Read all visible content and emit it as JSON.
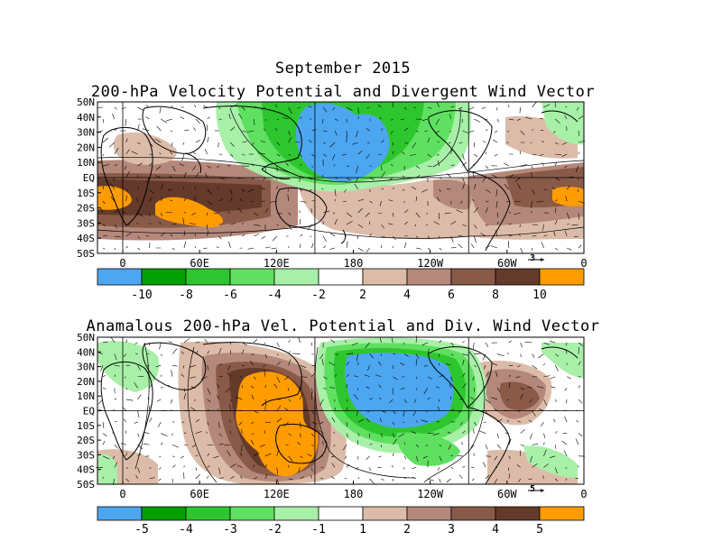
{
  "header": {
    "title": "September 2015",
    "panel1_title": "200-hPa Velocity Potential and Divergent Wind Vector",
    "panel2_title": "Anamalous 200-hPa Vel. Potential and Div. Wind Vector"
  },
  "chart_data": [
    {
      "type": "heatmap",
      "title": "200-hPa Velocity Potential and Divergent Wind Vector",
      "x_tick_labels": [
        "0",
        "60E",
        "120E",
        "180",
        "120W",
        "60W",
        "0"
      ],
      "y_tick_labels": [
        "50N",
        "40N",
        "30N",
        "20N",
        "10N",
        "EQ",
        "10S",
        "20S",
        "30S",
        "40S",
        "50S"
      ],
      "xlim": [
        0,
        360
      ],
      "ylim": [
        -50,
        50
      ],
      "vector_reference": "3",
      "colorbar": {
        "boundaries": [
          "-10",
          "-8",
          "-6",
          "-4",
          "-2",
          "2",
          "4",
          "6",
          "8",
          "10"
        ],
        "colors": [
          "#4da6f0",
          "#00a000",
          "#2ec62e",
          "#60e060",
          "#a8f0a8",
          "#ffffff",
          "#dcbca8",
          "#b4887a",
          "#8a5a48",
          "#643a2a",
          "#ff9c00"
        ]
      },
      "features": [
        {
          "name": "negative center (convergence aloft minimum)",
          "lon": 195,
          "lat": 22,
          "level": "< -10"
        },
        {
          "name": "positive maxima",
          "lon": 10,
          "lat": -18,
          "level": "> 10"
        },
        {
          "name": "positive maxima",
          "lon": 70,
          "lat": -25,
          "level": "> 10"
        },
        {
          "name": "positive maxima",
          "lon": 350,
          "lat": -18,
          "level": "> 10"
        }
      ]
    },
    {
      "type": "heatmap",
      "title": "Anamalous 200-hPa Vel. Potential and Div. Wind Vector",
      "x_tick_labels": [
        "0",
        "60E",
        "120E",
        "180",
        "120W",
        "60W",
        "0"
      ],
      "y_tick_labels": [
        "50N",
        "40N",
        "30N",
        "20N",
        "10N",
        "EQ",
        "10S",
        "20S",
        "30S",
        "40S",
        "50S"
      ],
      "xlim": [
        0,
        360
      ],
      "ylim": [
        -50,
        50
      ],
      "vector_reference": "5",
      "colorbar": {
        "boundaries": [
          "-5",
          "-4",
          "-3",
          "-2",
          "-1",
          "1",
          "2",
          "3",
          "4",
          "5"
        ],
        "colors": [
          "#4da6f0",
          "#00a000",
          "#2ec62e",
          "#60e060",
          "#a8f0a8",
          "#ffffff",
          "#dcbca8",
          "#b4887a",
          "#8a5a48",
          "#643a2a",
          "#ff9c00"
        ]
      },
      "features": [
        {
          "name": "negative anomaly center",
          "lon": 205,
          "lat": 15,
          "level": "< -5"
        },
        {
          "name": "positive anomaly center",
          "lon": 115,
          "lat": 5,
          "level": "> 5"
        }
      ]
    }
  ]
}
